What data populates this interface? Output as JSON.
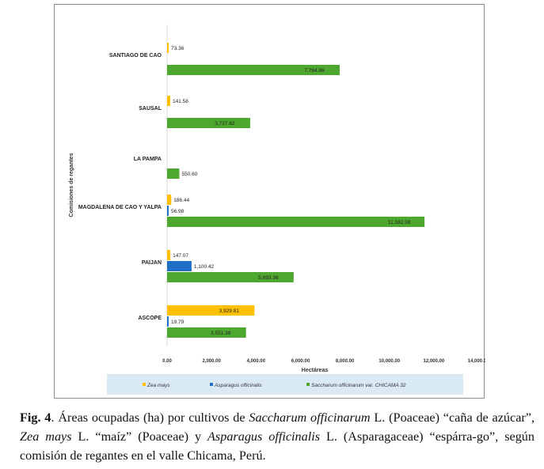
{
  "chart_data": {
    "type": "bar",
    "orientation": "horizontal",
    "categories": [
      "SANTIAGO DE CAO",
      "SAUSAL",
      "LA PAMPA",
      "MAGDALENA DE CAO Y YALPA",
      "PAIJAN",
      "ASCOPE"
    ],
    "series": [
      {
        "name": "Zea mays",
        "color": "#FFC000",
        "values": [
          73.36,
          141.58,
          null,
          186.44,
          147.07,
          3929.81
        ],
        "labels": [
          "73.36",
          "141.58",
          "",
          "186.44",
          "147.07",
          "3,929.81"
        ]
      },
      {
        "name": "Asparagus officinalis",
        "color": "#1F6FC5",
        "values": [
          null,
          null,
          null,
          56.98,
          1100.42,
          19.79
        ],
        "labels": [
          "",
          "",
          "",
          "56.98",
          "1,100.42",
          "19.79"
        ]
      },
      {
        "name": "Saccharum officinarum var. CHICAMA 32",
        "color": "#4EA72E",
        "values": [
          7764.86,
          3737.62,
          550.6,
          11582.58,
          5693.36,
          3551.38
        ],
        "labels": [
          "7,764.86",
          "3,737.62",
          "550.60",
          "11,582.58",
          "5,693.36",
          "3,551.38"
        ]
      }
    ],
    "xlabel": "Hectáreas",
    "ylabel": "Comisiones de regantes",
    "xlim": [
      0,
      14000
    ],
    "xticks": [
      0,
      2000,
      4000,
      6000,
      8000,
      10000,
      12000,
      14000
    ],
    "xtick_labels": [
      "0.00",
      "2,000.00",
      "4,000.00",
      "6,000.00",
      "8,000.00",
      "10,000.00",
      "12,000.00",
      "14,000.00"
    ],
    "grid": false,
    "legend_position": "bottom"
  },
  "caption": {
    "fig_label": "Fig. 4",
    "t1": ". Áreas ocupadas (ha) por cultivos de ",
    "i1": "Saccharum officinarum",
    "t2": " L. (Poaceae) “caña de azúcar”, ",
    "i2": "Zea mays",
    "t3": " L. “maíz” (Poaceae) y ",
    "i3": "Asparagus officinalis",
    "t4": " L. (Asparagaceae) “espárra-go”, según comisión de regantes en el valle Chicama, Perú."
  }
}
